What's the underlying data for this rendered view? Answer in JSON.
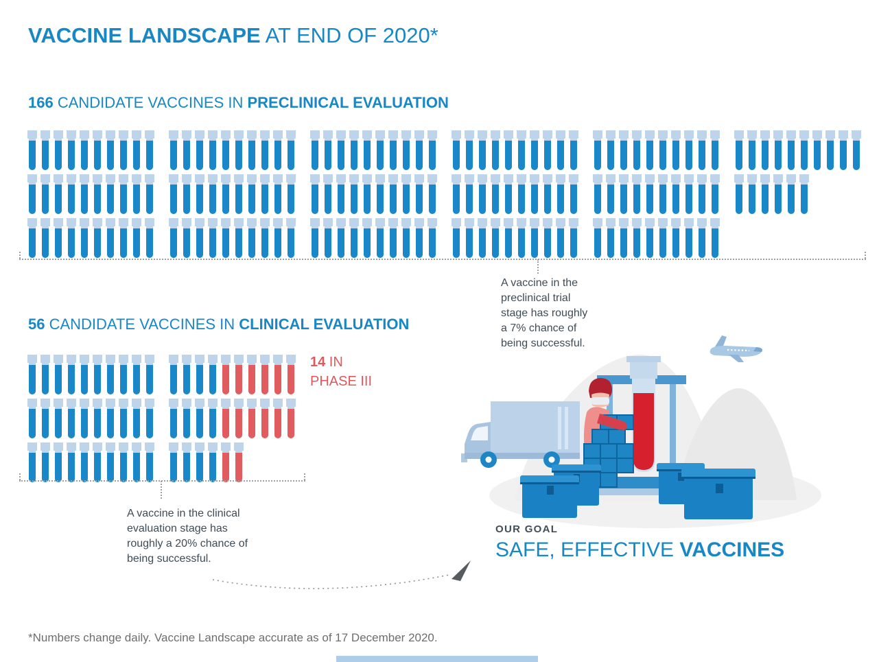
{
  "title": {
    "bold": "VACCINE LANDSCAPE",
    "regular": " AT END OF 2020*"
  },
  "preclinical": {
    "count": "166",
    "mid": " CANDIDATE VACCINES IN ",
    "bold": "PRECLINICAL EVALUATION",
    "rows": [
      [
        {
          "blue": 10,
          "red": 0
        },
        {
          "blue": 10,
          "red": 0
        },
        {
          "blue": 10,
          "red": 0
        },
        {
          "blue": 10,
          "red": 0
        },
        {
          "blue": 10,
          "red": 0
        },
        {
          "blue": 10,
          "red": 0
        }
      ],
      [
        {
          "blue": 10,
          "red": 0
        },
        {
          "blue": 10,
          "red": 0
        },
        {
          "blue": 10,
          "red": 0
        },
        {
          "blue": 10,
          "red": 0
        },
        {
          "blue": 10,
          "red": 0
        },
        {
          "blue": 6,
          "red": 0
        }
      ],
      [
        {
          "blue": 10,
          "red": 0
        },
        {
          "blue": 10,
          "red": 0
        },
        {
          "blue": 10,
          "red": 0
        },
        {
          "blue": 10,
          "red": 0
        },
        {
          "blue": 10,
          "red": 0
        }
      ]
    ]
  },
  "clinical": {
    "count": "56",
    "mid": " CANDIDATE VACCINES IN ",
    "bold": "CLINICAL EVALUATION",
    "rows": [
      [
        {
          "blue": 10,
          "red": 0
        },
        {
          "blue": 4,
          "red": 6
        }
      ],
      [
        {
          "blue": 10,
          "red": 0
        },
        {
          "blue": 4,
          "red": 6
        }
      ],
      [
        {
          "blue": 10,
          "red": 0
        },
        {
          "blue": 4,
          "red": 2
        }
      ]
    ]
  },
  "phase3": {
    "count": "14",
    "suffix": " IN",
    "line2": "PHASE III"
  },
  "annotations": {
    "preclinical": [
      "A vaccine in the",
      "preclinical trial",
      "stage has roughly",
      "a 7% chance of",
      "being successful."
    ],
    "clinical": [
      "A vaccine in the clinical",
      "evaluation stage has",
      "roughly a 20% chance of",
      "being successful."
    ]
  },
  "goal": {
    "label": "OUR GOAL",
    "regular": "SAFE, EFFECTIVE ",
    "bold": "VACCINES"
  },
  "footnote": {
    "text": "*Numbers change daily. Vaccine Landscape accurate as of 17 December 2020."
  },
  "colors": {
    "blue": "#1787c5",
    "tube_blue": "#1a87c8",
    "tube_cap": "#bdd4ea",
    "red": "#e05c5f",
    "big_tube_red": "#d6202e",
    "ink": "#3f4b55",
    "footnote_gray": "#6d6d6d"
  },
  "icons": [
    "test-tube-icon",
    "truck-icon",
    "airplane-icon",
    "worker-icon",
    "crate-stack-icon",
    "cooler-box-icon",
    "test-tube-stand-icon",
    "arrow-head-icon"
  ],
  "chart_data": {
    "type": "pictograph",
    "unit": "1 test tube icon = 1 candidate vaccine",
    "title": "VACCINE LANDSCAPE AT END OF 2020*",
    "series": [
      {
        "name": "Candidate vaccines in preclinical evaluation",
        "value": 166,
        "color": "#1a87c8",
        "rows_of_icons": [
          60,
          56,
          50
        ]
      },
      {
        "name": "Candidate vaccines in clinical evaluation",
        "value": 56,
        "color": "#1a87c8",
        "rows_of_icons": [
          20,
          20,
          16
        ]
      },
      {
        "name": "In Phase III (red subset of clinical)",
        "value": 14,
        "color": "#e05c5f",
        "rows_of_icons": [
          6,
          6,
          2
        ]
      }
    ],
    "annotations": [
      "A vaccine in the preclinical trial stage has roughly a 7% chance of being successful.",
      "A vaccine in the clinical evaluation stage has roughly a 20% chance of being successful."
    ],
    "footnote": "*Numbers change daily. Vaccine Landscape accurate as of 17 December 2020."
  }
}
